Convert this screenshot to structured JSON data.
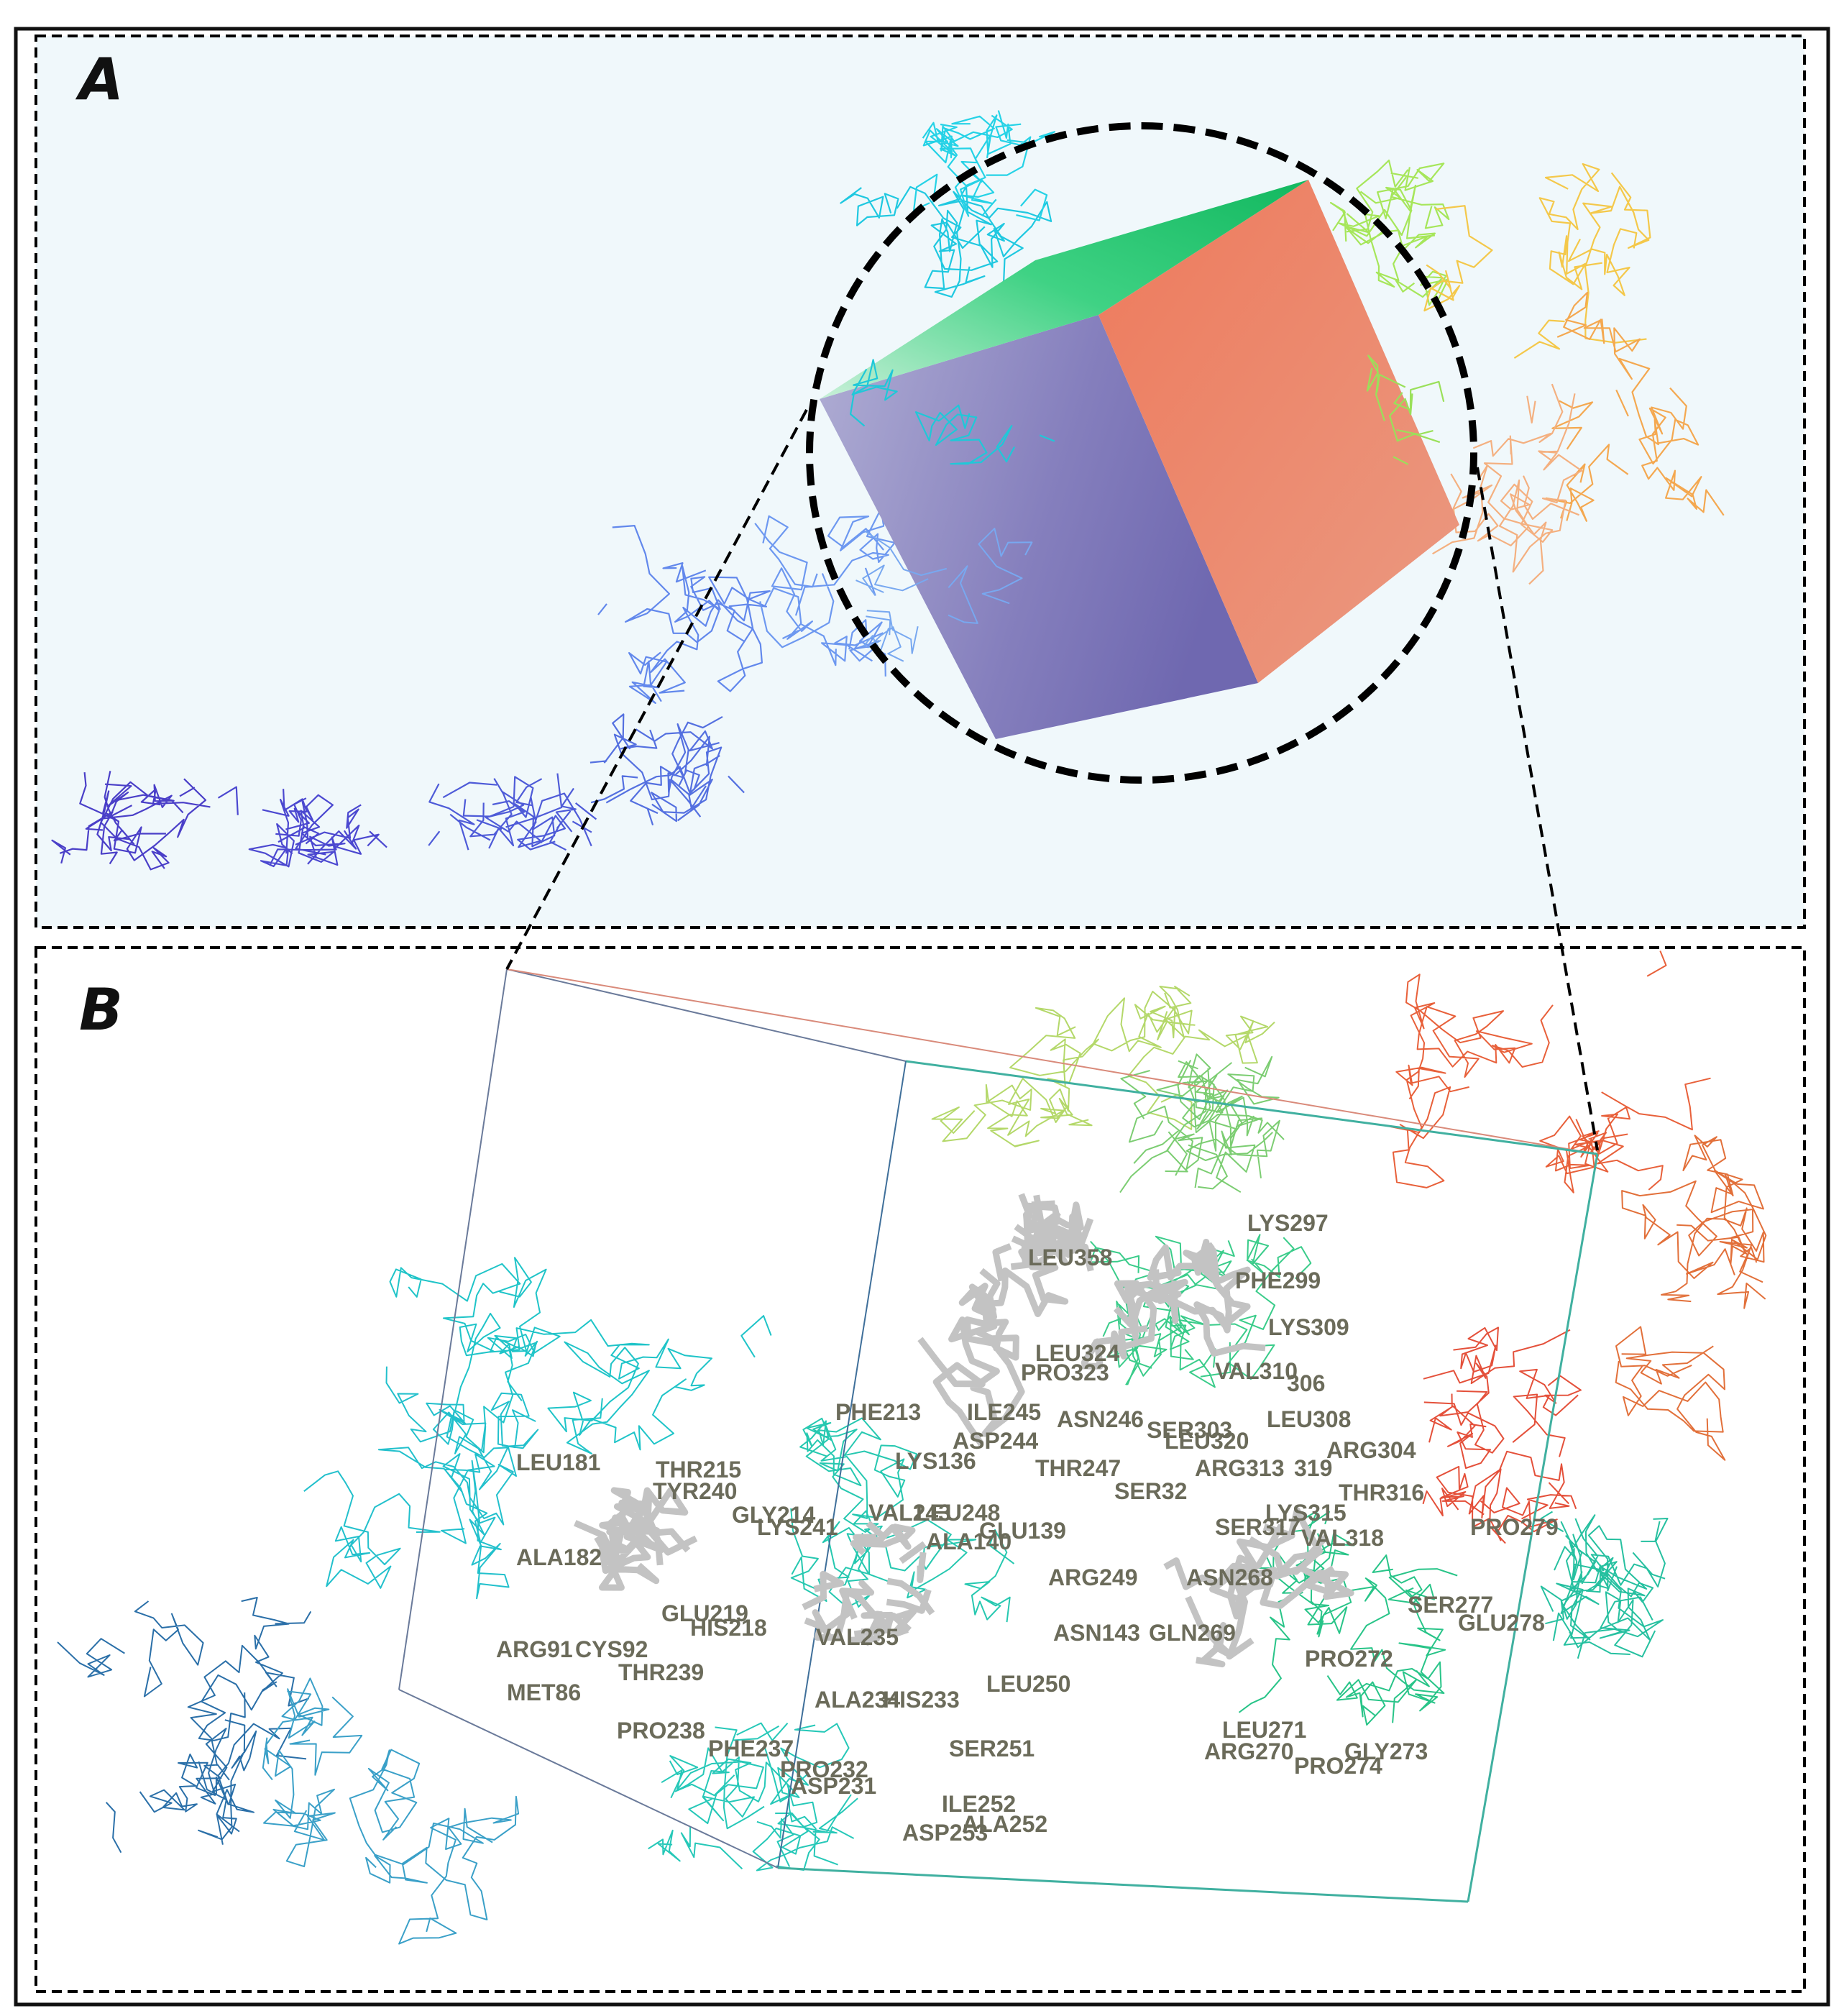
{
  "panels": {
    "a": {
      "letter": "A"
    },
    "b": {
      "letter": "B"
    }
  },
  "residue_labels": [
    "LEU358",
    "LYS297",
    "PHE299",
    "LYS309",
    "LEU324",
    "PRO323",
    "VAL310",
    "306",
    "PHE213",
    "ILE245",
    "ASN246",
    "SER303",
    "LEU308",
    "ASP244",
    "LEU320",
    "LYS136",
    "THR247",
    "ARG313",
    "319",
    "ARG304",
    "LEU181",
    "THR215",
    "TYR240",
    "SER32",
    "THR316",
    "VAL243",
    "LEU248",
    "LYS241",
    "GLY214",
    "LYS315",
    "ALA182",
    "ALA140",
    "GLU139",
    "SER317",
    "VAL318",
    "PRO279",
    "ARG249",
    "ASN268",
    "GLU219",
    "HIS218",
    "ARG91",
    "CYS92",
    "VAL235",
    "ASN143",
    "GLN269",
    "SER277",
    "GLU278",
    "THR239",
    "PRO272",
    "MET86",
    "LEU250",
    "ALA234",
    "HIS233",
    "LEU271",
    "PRO238",
    "ARG270",
    "GLY273",
    "PRO274",
    "PHE237",
    "SER251",
    "PRO232",
    "ASP231",
    "ILE252",
    "ALA252",
    "ASP253"
  ],
  "colors": {
    "panel_a_bg": "#f0f8fb",
    "cube_top": "#2ec977",
    "cube_left": "#7f79b9",
    "cube_right": "#ea8769",
    "residue_stick": "#c3c3c3",
    "label_text": "#6b6b5a"
  }
}
